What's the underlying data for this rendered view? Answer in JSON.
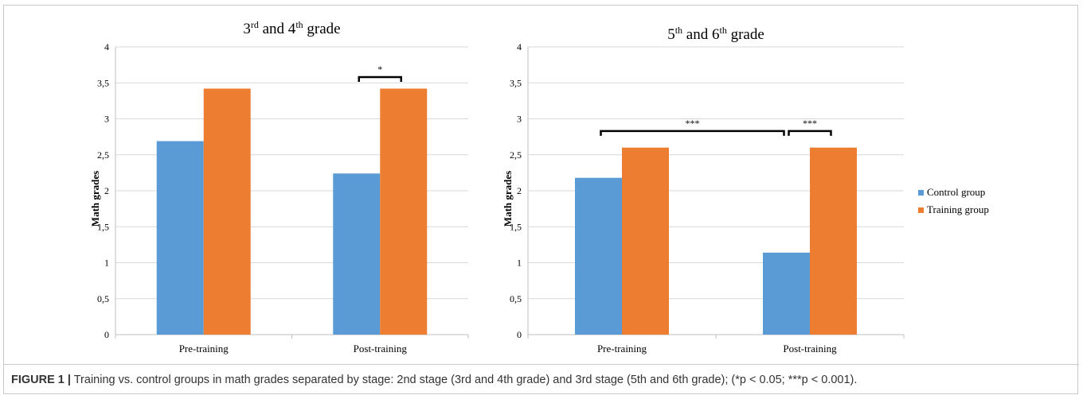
{
  "chart_data": [
    {
      "type": "bar",
      "title": "3rd and 4th grade",
      "title_parts": {
        "a": "3",
        "a_sup": "rd",
        "mid": " and 4",
        "b_sup": "th",
        "end": " grade"
      },
      "ylabel": "Math grades",
      "xlabel": "",
      "categories": [
        "Pre-training",
        "Post-training"
      ],
      "series": [
        {
          "name": "Control group",
          "values": [
            2.69,
            2.24
          ]
        },
        {
          "name": "Training group",
          "values": [
            3.42,
            3.42
          ]
        }
      ],
      "ylim": [
        0,
        4
      ],
      "yticks": [
        "0",
        "0,5",
        "1",
        "1,5",
        "2",
        "2,5",
        "3",
        "3,5",
        "4"
      ],
      "grid": true,
      "annotations": [
        {
          "text": "*",
          "from": "Post-training|Control group",
          "to": "Post-training|Training group",
          "y": 3.58
        }
      ]
    },
    {
      "type": "bar",
      "title": "5th and 6th grade",
      "title_parts": {
        "a": "5",
        "a_sup": "th",
        "mid": " and 6",
        "b_sup": "th",
        "end": " grade"
      },
      "ylabel": "Math grades",
      "xlabel": "",
      "categories": [
        "Pre-training",
        "Post-training"
      ],
      "series": [
        {
          "name": "Control group",
          "values": [
            2.18,
            1.14
          ]
        },
        {
          "name": "Training group",
          "values": [
            2.6,
            2.6
          ]
        }
      ],
      "ylim": [
        0,
        4
      ],
      "yticks": [
        "0",
        "0,5",
        "1",
        "1,5",
        "2",
        "2,5",
        "3",
        "3,5",
        "4"
      ],
      "grid": true,
      "annotations": [
        {
          "text": "***",
          "from": "Pre-training|Control group",
          "to": "Post-training|Control group",
          "y": 2.83
        },
        {
          "text": "***",
          "from": "Post-training|Control group",
          "to": "Post-training|Training group",
          "y": 2.83
        }
      ]
    }
  ],
  "legend": {
    "placement": "right",
    "items": [
      {
        "label": "Control group",
        "color": "#5b9bd5"
      },
      {
        "label": "Training group",
        "color": "#ed7d31"
      }
    ]
  },
  "colors": {
    "control": "#5b9bd5",
    "training": "#ed7d31",
    "grid": "#d9d9d9",
    "axis": "#bfbfbf"
  },
  "caption": {
    "label": "FIGURE 1 |",
    "text": " Training vs. control groups in math grades separated by stage: 2nd stage (3rd and 4th grade) and 3rd stage (5th and 6th grade); (*p < 0.05; ***p < 0.001)."
  }
}
